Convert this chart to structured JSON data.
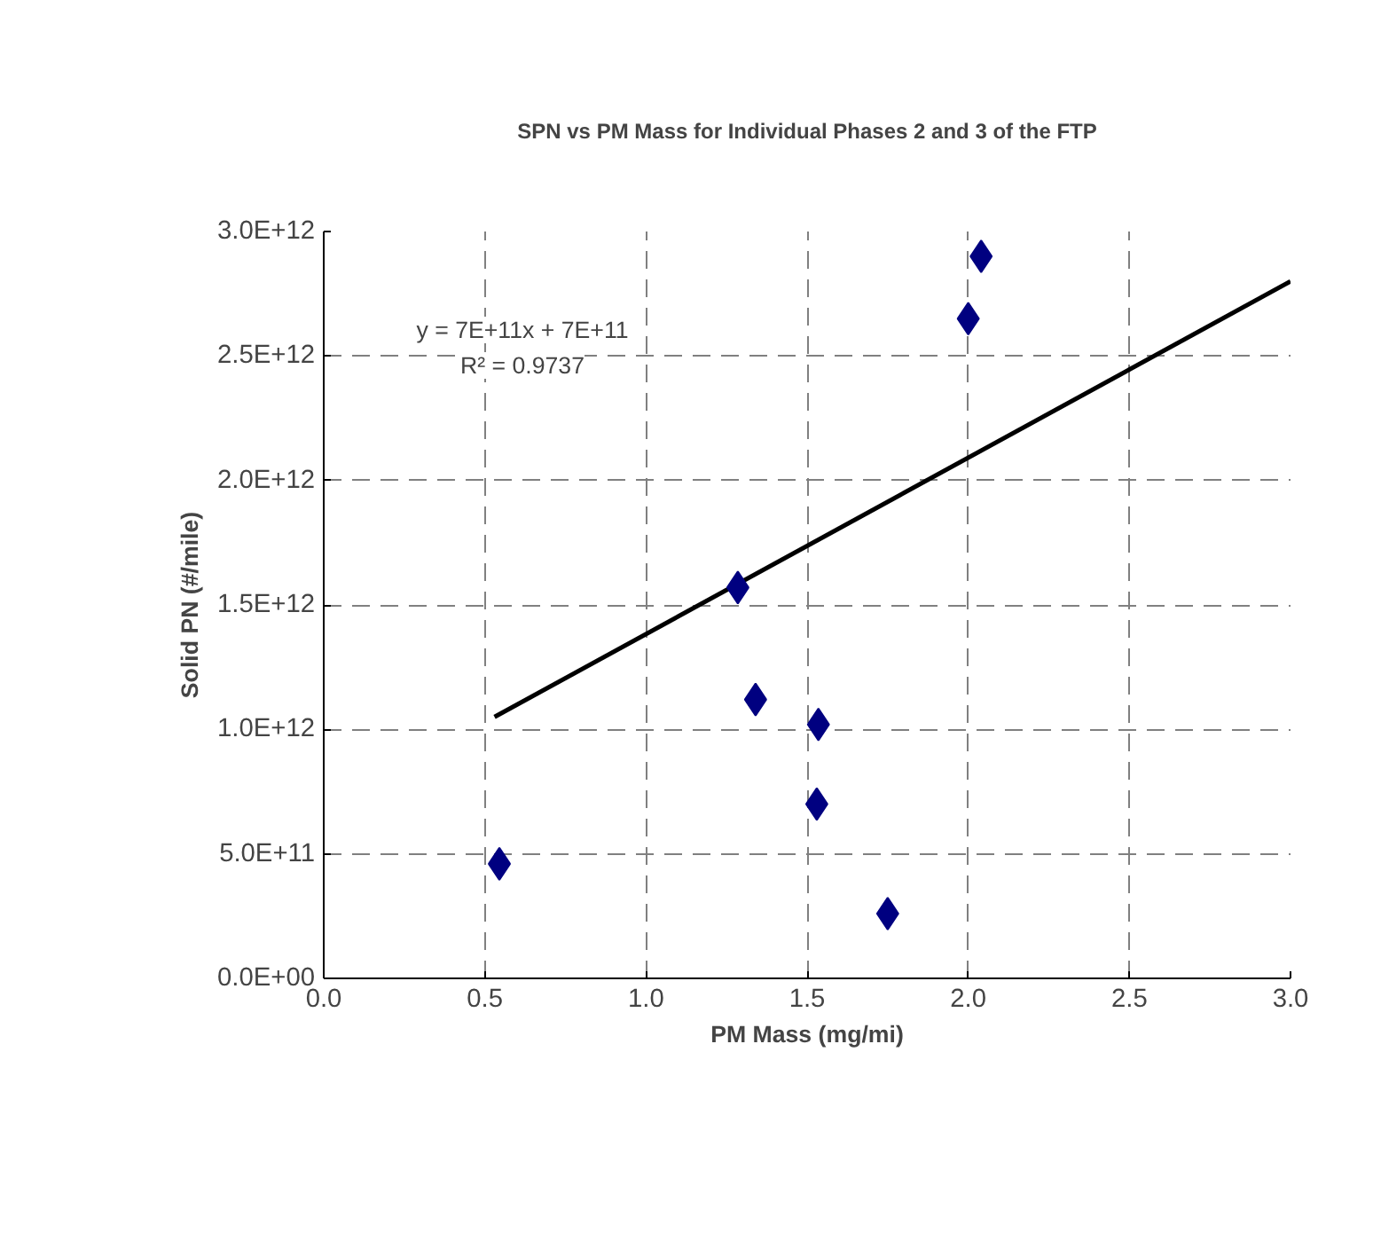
{
  "chart_data": {
    "type": "scatter",
    "title": "SPN vs PM Mass for Individual Phases 2 and 3 of the FTP",
    "xlabel": "PM Mass (mg/mi)",
    "ylabel": "Solid PN (#/mile)",
    "x": [
      0.545,
      1.285,
      1.34,
      1.535,
      1.53,
      1.75,
      2.0,
      2.04
    ],
    "series": [
      {
        "color": "#000080",
        "marker": "diamond",
        "values": [
          460000000000.0,
          1570000000000.0,
          1120000000000.0,
          1020000000000.0,
          700000000000.0,
          260000000000.0,
          2650000000000.0,
          2900000000000.0
        ]
      },
      {
        "type": "line",
        "color": "#000000",
        "marker": "none",
        "line_style": "solid",
        "x": [
          0.53,
          3.0
        ],
        "values": [
          1050000000000.0,
          2800000000000.0
        ]
      }
    ],
    "annotations": [
      "y = 7E+11x + 7E+11",
      "R² = 0.9737"
    ],
    "xlim": [
      0,
      3
    ],
    "xticks": [
      {
        "value": 0,
        "label": "0.0"
      },
      {
        "value": 0.5,
        "label": "0.5"
      },
      {
        "value": 1,
        "label": "1.0"
      },
      {
        "value": 1.5,
        "label": "1.5"
      },
      {
        "value": 2,
        "label": "2.0"
      },
      {
        "value": 2.5,
        "label": "2.5"
      },
      {
        "value": 3,
        "label": "3.0"
      }
    ],
    "ylim": [
      0,
      3000000000000.0
    ],
    "yticks": [
      {
        "value": 0,
        "label": "0.0E+00"
      },
      {
        "value": 500000000000.0,
        "label": "5.0E+11"
      },
      {
        "value": 1000000000000.0,
        "label": "1.0E+12"
      },
      {
        "value": 1500000000000.0,
        "label": "1.5E+12"
      },
      {
        "value": 2000000000000.0,
        "label": "2.0E+12"
      },
      {
        "value": 2500000000000.0,
        "label": "2.5E+12"
      },
      {
        "value": 3000000000000.0,
        "label": "3.0E+12"
      }
    ],
    "grid": true
  }
}
